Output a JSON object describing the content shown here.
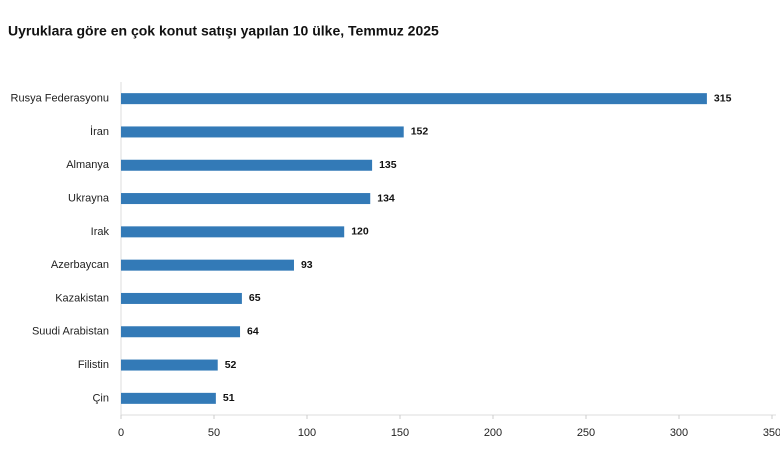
{
  "chart_data": {
    "type": "bar",
    "orientation": "horizontal",
    "title": "Uyruklara göre en çok konut satışı yapılan 10 ülke, Temmuz 2025",
    "categories": [
      "Rusya Federasyonu",
      "İran",
      "Almanya",
      "Ukrayna",
      "Irak",
      "Azerbaycan",
      "Kazakistan",
      "Suudi Arabistan",
      "Filistin",
      "Çin"
    ],
    "values": [
      315,
      152,
      135,
      134,
      120,
      93,
      65,
      64,
      52,
      51
    ],
    "color": "#337ab7",
    "xlim": [
      0,
      350
    ],
    "xticks": [
      0,
      50,
      100,
      150,
      200,
      250,
      300,
      350
    ],
    "grid": false
  }
}
